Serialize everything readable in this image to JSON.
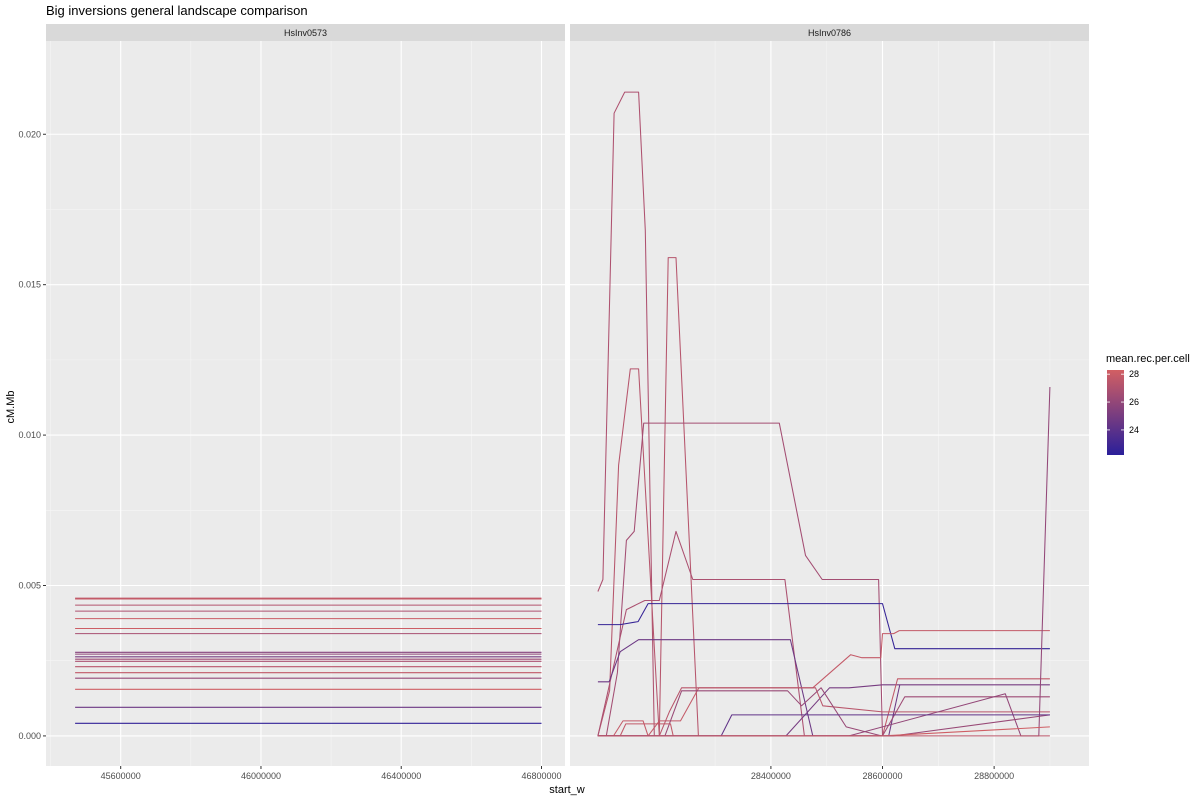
{
  "chart_data": {
    "type": "line",
    "title": "Big inversions general landscape comparison",
    "xlabel": "start_w",
    "ylabel": "cM.Mb",
    "ylim": [
      -0.001,
      0.0231
    ],
    "y_ticks": [
      "0.000",
      "0.005",
      "0.010",
      "0.015",
      "0.020"
    ],
    "y_tick_values": [
      0,
      0.005,
      0.01,
      0.015,
      0.02
    ],
    "legend": {
      "title": "mean.rec.per.cell",
      "placement": "right",
      "range": [
        22.2,
        28.3
      ],
      "ticks": [
        "28",
        "26",
        "24"
      ],
      "tick_values": [
        28,
        26,
        24
      ],
      "low_color": "#2a1f9a",
      "high_color": "#d25f63"
    },
    "panels": [
      {
        "strip": "HsInv0573",
        "xlim": [
          45387000,
          46867000
        ],
        "x_ticks": [
          "45600000",
          "46000000",
          "46400000",
          "46800000"
        ],
        "x_tick_values": [
          45600000,
          46000000,
          46400000,
          46800000
        ],
        "series": [
          {
            "mean_rec": 27.6,
            "x": [
              45470000,
              46800000
            ],
            "y": [
              0.00458,
              0.00458
            ]
          },
          {
            "mean_rec": 27.9,
            "x": [
              45470000,
              46800000
            ],
            "y": [
              0.00455,
              0.00455
            ]
          },
          {
            "mean_rec": 27.2,
            "x": [
              45470000,
              46800000
            ],
            "y": [
              0.00435,
              0.00435
            ]
          },
          {
            "mean_rec": 27.0,
            "x": [
              45470000,
              46800000
            ],
            "y": [
              0.00415,
              0.00415
            ]
          },
          {
            "mean_rec": 28.0,
            "x": [
              45470000,
              46800000
            ],
            "y": [
              0.0039,
              0.0039
            ]
          },
          {
            "mean_rec": 28.1,
            "x": [
              45470000,
              46800000
            ],
            "y": [
              0.00357,
              0.00357
            ]
          },
          {
            "mean_rec": 26.8,
            "x": [
              45470000,
              46800000
            ],
            "y": [
              0.0034,
              0.0034
            ]
          },
          {
            "mean_rec": 25.5,
            "x": [
              45470000,
              46800000
            ],
            "y": [
              0.00278,
              0.00278
            ]
          },
          {
            "mean_rec": 25.9,
            "x": [
              45470000,
              46800000
            ],
            "y": [
              0.00272,
              0.00272
            ]
          },
          {
            "mean_rec": 25.0,
            "x": [
              45470000,
              46800000
            ],
            "y": [
              0.00263,
              0.00263
            ]
          },
          {
            "mean_rec": 26.4,
            "x": [
              45470000,
              46800000
            ],
            "y": [
              0.00255,
              0.00255
            ]
          },
          {
            "mean_rec": 26.9,
            "x": [
              45470000,
              46800000
            ],
            "y": [
              0.00248,
              0.00248
            ]
          },
          {
            "mean_rec": 27.4,
            "x": [
              45470000,
              46800000
            ],
            "y": [
              0.0023,
              0.0023
            ]
          },
          {
            "mean_rec": 27.7,
            "x": [
              45470000,
              46800000
            ],
            "y": [
              0.0021,
              0.0021
            ]
          },
          {
            "mean_rec": 26.1,
            "x": [
              45470000,
              46800000
            ],
            "y": [
              0.00192,
              0.00192
            ]
          },
          {
            "mean_rec": 28.2,
            "x": [
              45470000,
              46800000
            ],
            "y": [
              0.00155,
              0.00155
            ]
          },
          {
            "mean_rec": 24.6,
            "x": [
              45470000,
              46800000
            ],
            "y": [
              0.00095,
              0.00095
            ]
          },
          {
            "mean_rec": 22.5,
            "x": [
              45470000,
              46800000
            ],
            "y": [
              0.00042,
              0.00042
            ]
          }
        ]
      },
      {
        "strip": "HsInv0786",
        "xlim": [
          28040000,
          28970000
        ],
        "x_ticks": [
          "28400000",
          "28600000",
          "28800000"
        ],
        "x_tick_values": [
          28400000,
          28600000,
          28800000
        ],
        "series": [
          {
            "mean_rec": 27.0,
            "x": [
              28090000,
              28099000,
              28119000,
              28138000,
              28163000,
              28175000,
              28191000
            ],
            "y": [
              0.0048,
              0.0052,
              0.0207,
              0.0214,
              0.0214,
              0.0168,
              0.0
            ]
          },
          {
            "mean_rec": 27.3,
            "x": [
              28090000,
              28111000,
              28127000,
              28148000,
              28163000,
              28200000,
              28216000,
              28230000,
              28270000
            ],
            "y": [
              0.0,
              0.0015,
              0.009,
              0.0122,
              0.0122,
              0.0,
              0.0159,
              0.0159,
              0.0
            ]
          },
          {
            "mean_rec": 26.6,
            "x": [
              28090000,
              28105000,
              28125000,
              28141000,
              28155000,
              28172000,
              28190000,
              28230000,
              28260000,
              28275000,
              28415000,
              28462000,
              28492000,
              28593000,
              28600000
            ],
            "y": [
              0.0,
              0.0,
              0.0021,
              0.0065,
              0.0068,
              0.0104,
              0.0104,
              0.0104,
              0.0104,
              0.0104,
              0.0104,
              0.006,
              0.0052,
              0.0052,
              0.0
            ]
          },
          {
            "mean_rec": 26.9,
            "x": [
              28090000,
              28141000,
              28174000,
              28200000,
              28230000,
              28260000,
              28318000,
              28425000,
              28460000,
              28620000
            ],
            "y": [
              0.0,
              0.0042,
              0.0045,
              0.0045,
              0.0068,
              0.0052,
              0.0052,
              0.0052,
              0.0,
              0.0
            ]
          },
          {
            "mean_rec": 22.6,
            "x": [
              28090000,
              28106000,
              28130000,
              28162000,
              28180000,
              28220000,
              28400000,
              28600000,
              28622000,
              28685000,
              28900000
            ],
            "y": [
              0.0037,
              0.0037,
              0.0037,
              0.0038,
              0.0044,
              0.0044,
              0.0044,
              0.0044,
              0.0029,
              0.0029,
              0.0029
            ]
          },
          {
            "mean_rec": 24.6,
            "x": [
              28090000,
              28110000,
              28130000,
              28163000,
              28215000,
              28435000,
              28475000,
              28531000,
              28542000,
              28611000,
              28631000
            ],
            "y": [
              0.0018,
              0.0018,
              0.0028,
              0.0032,
              0.0032,
              0.0032,
              0.0,
              0.0,
              0.0,
              0.0,
              0.0017
            ]
          },
          {
            "mean_rec": 27.8,
            "x": [
              28090000,
              28118000,
              28135000,
              28171000,
              28180000,
              28200000,
              28238000,
              28271000,
              28475000,
              28543000,
              28563000,
              28597000,
              28600000,
              28620000,
              28630000,
              28900000
            ],
            "y": [
              0.0,
              0.0,
              0.0005,
              0.0005,
              0.0,
              0.0005,
              0.0005,
              0.0016,
              0.0016,
              0.0027,
              0.0026,
              0.0026,
              0.0034,
              0.0034,
              0.0035,
              0.0035
            ]
          },
          {
            "mean_rec": 25.0,
            "x": [
              28090000,
              28210000,
              28250000,
              28427000,
              28505000,
              28530000,
              28540000,
              28600000,
              28630000,
              28900000
            ],
            "y": [
              0.0,
              0.0,
              0.0,
              0.0,
              0.0016,
              0.0016,
              0.0016,
              0.0017,
              0.0017,
              0.0017
            ]
          },
          {
            "mean_rec": 27.4,
            "x": [
              28090000,
              28200000,
              28218000,
              28240000,
              28480000,
              28493000,
              28600000,
              28617000,
              28900000
            ],
            "y": [
              0.0,
              0.0,
              0.0008,
              0.0016,
              0.0016,
              0.001,
              0.0008,
              0.0008,
              0.0008
            ]
          },
          {
            "mean_rec": 26.2,
            "x": [
              28090000,
              28210000,
              28226000,
              28240000,
              28430000,
              28455000,
              28490000,
              28535000,
              28598000,
              28620000,
              28900000
            ],
            "y": [
              0.0,
              0.0,
              0.0008,
              0.0015,
              0.0015,
              0.001,
              0.0016,
              0.0003,
              0.0,
              0.0,
              0.0007
            ]
          },
          {
            "mean_rec": 27.7,
            "x": [
              28090000,
              28130000,
              28140000,
              28220000,
              28225000,
              28420000,
              28500000,
              28600000,
              28627000,
              28760000,
              28779000,
              28800000,
              28870000,
              28900000
            ],
            "y": [
              0.0,
              0.0,
              0.0004,
              0.0004,
              0.0,
              0.0,
              0.0,
              0.0,
              0.0019,
              0.0019,
              0.0019,
              0.0019,
              0.0019,
              0.0019
            ]
          },
          {
            "mean_rec": 26.4,
            "x": [
              28090000,
              28280000,
              28310000,
              28600000,
              28640000,
              28760000,
              28900000
            ],
            "y": [
              0.0,
              0.0,
              0.0,
              0.0,
              0.0013,
              0.0013,
              0.0013
            ]
          },
          {
            "mean_rec": 26.0,
            "x": [
              28090000,
              28420000,
              28500000,
              28540000,
              28820000,
              28848000,
              28880000,
              28900000
            ],
            "y": [
              0.0,
              0.0,
              0.0,
              0.0,
              0.0014,
              0.0,
              0.0,
              0.0116
            ]
          },
          {
            "mean_rec": 24.2,
            "x": [
              28090000,
              28311000,
              28330000,
              28512000,
              28598000,
              28610000,
              28900000
            ],
            "y": [
              0.0,
              0.0,
              0.0007,
              0.0007,
              0.0007,
              0.0007,
              0.0007
            ]
          },
          {
            "mean_rec": 28.2,
            "x": [
              28090000,
              28500000,
              28540000,
              28600000,
              28900000
            ],
            "y": [
              0.0,
              0.0,
              0.0,
              0.0,
              0.0003
            ]
          },
          {
            "mean_rec": 27.5,
            "x": [
              28090000,
              28900000
            ],
            "y": [
              0.0,
              0.0
            ]
          }
        ]
      }
    ]
  }
}
